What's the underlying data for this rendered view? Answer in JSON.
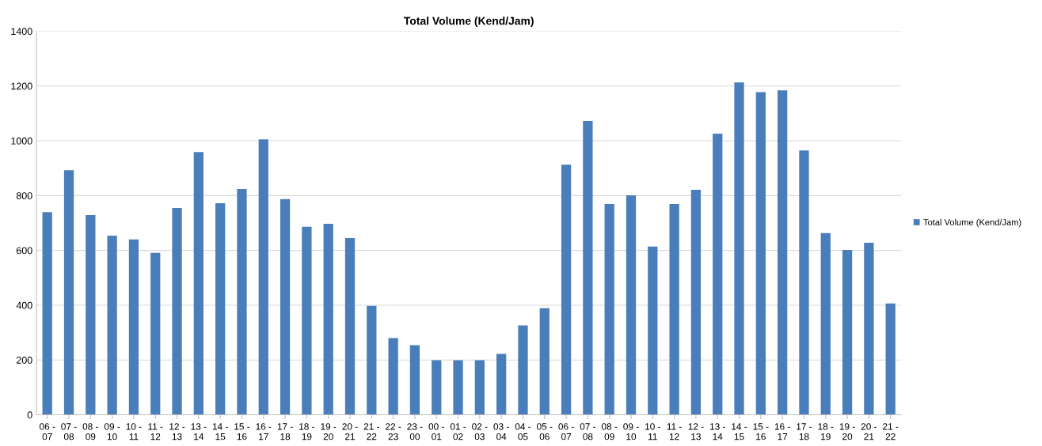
{
  "chart_data": {
    "type": "bar",
    "title": "Total Volume (Kend/Jam)",
    "categories": [
      "06 -\n07",
      "07 -\n08",
      "08 -\n09",
      "09 -\n10",
      "10 -\n11",
      "11 -\n12",
      "12 -\n13",
      "13 -\n14",
      "14 -\n15",
      "15 -\n16",
      "16 -\n17",
      "17 -\n18",
      "18 -\n19",
      "19 -\n20",
      "20 -\n21",
      "21 -\n22",
      "22 -\n23",
      "23 -\n00",
      "00 -\n01",
      "01 -\n02",
      "02 -\n03",
      "03 -\n04",
      "04 -\n05",
      "05 -\n06",
      "06 -\n07",
      "07 -\n08",
      "08 -\n09",
      "09 -\n10",
      "10 -\n11",
      "11 -\n12",
      "12 -\n13",
      "13 -\n14",
      "14 -\n15",
      "15 -\n16",
      "16 -\n17",
      "17 -\n18",
      "18 -\n19",
      "19 -\n20",
      "20 -\n21",
      "21 -\n22"
    ],
    "series": [
      {
        "name": "Total Volume (Kend/Jam)",
        "color": "#4a7ebb",
        "values": [
          740,
          893,
          729,
          654,
          640,
          591,
          755,
          959,
          772,
          824,
          1005,
          787,
          686,
          697,
          645,
          398,
          280,
          254,
          199,
          199,
          199,
          222,
          326,
          389,
          913,
          1072,
          769,
          801,
          614,
          769,
          821,
          1026,
          1213,
          1178,
          1184,
          965,
          663,
          602,
          628,
          406
        ]
      }
    ],
    "ylim": [
      0,
      1400
    ],
    "yticks": [
      0,
      200,
      400,
      600,
      800,
      1000,
      1200,
      1400
    ],
    "grid": "y",
    "legend": "right"
  }
}
